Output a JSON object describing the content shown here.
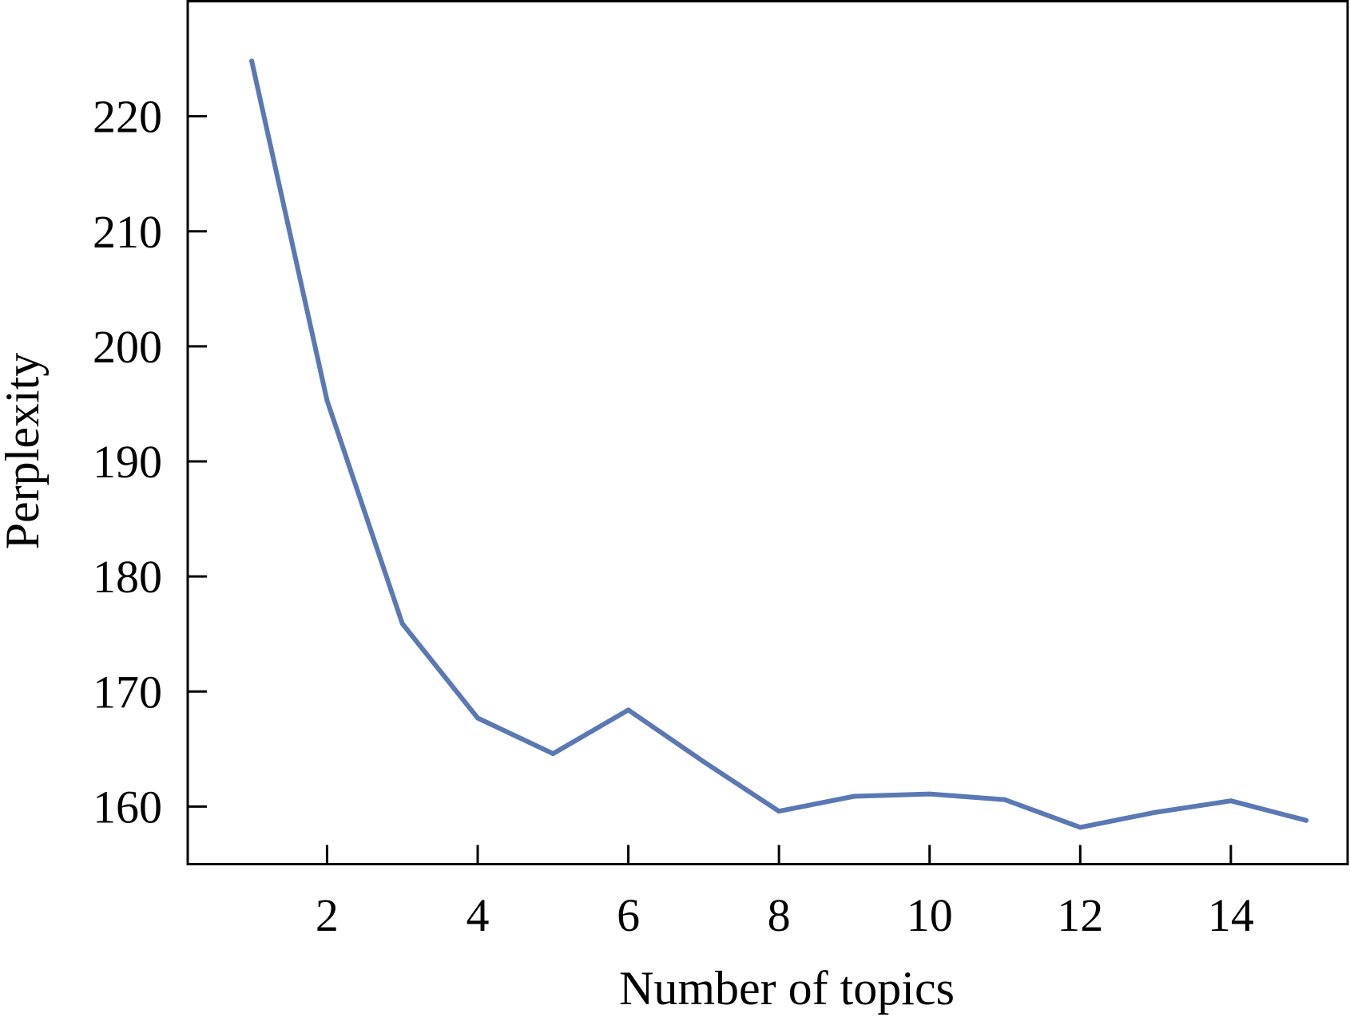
{
  "chart_data": {
    "type": "line",
    "title": "",
    "xlabel": "Number of topics",
    "ylabel": "Perplexity",
    "xlim": [
      0.15,
      15.55
    ],
    "ylim": [
      155,
      230
    ],
    "x_ticks": [
      2,
      4,
      6,
      8,
      10,
      12,
      14
    ],
    "y_ticks": [
      160,
      170,
      180,
      190,
      200,
      210,
      220
    ],
    "x_tick_labels": [
      "2",
      "4",
      "6",
      "8",
      "10",
      "12",
      "14"
    ],
    "y_tick_labels": [
      "160",
      "170",
      "180",
      "190",
      "200",
      "210",
      "220"
    ],
    "grid": false,
    "legend": "none",
    "series": [
      {
        "color": "#5a78b4",
        "x": [
          1,
          2,
          3,
          4,
          5,
          6,
          7,
          8,
          9,
          10,
          11,
          12,
          13,
          14,
          15
        ],
        "y": [
          224.8,
          195.3,
          175.9,
          167.7,
          164.6,
          168.4,
          163.9,
          159.6,
          160.9,
          161.1,
          160.6,
          158.2,
          159.5,
          160.5,
          158.8
        ]
      }
    ]
  }
}
